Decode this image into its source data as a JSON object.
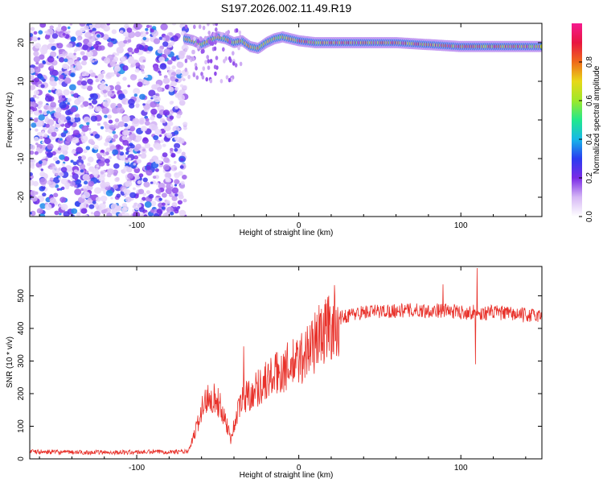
{
  "chart_data": [
    {
      "type": "heatmap",
      "title": "S197.2026.002.11.49.R19",
      "xlabel": "Height of straight line (km)",
      "ylabel": "Frequency (Hz)",
      "xlim": [
        -166,
        150
      ],
      "ylim": [
        -25,
        25
      ],
      "xticks": [
        -100,
        0,
        100
      ],
      "yticks": [
        -20,
        -10,
        0,
        10,
        20
      ],
      "noise_region_x": [
        -166,
        -70
      ],
      "signal_ridge": {
        "x": [
          -70,
          -65,
          -60,
          -55,
          -50,
          -45,
          -40,
          -35,
          -30,
          -25,
          -20,
          -15,
          -10,
          -5,
          0,
          10,
          20,
          40,
          60,
          80,
          100,
          120,
          150
        ],
        "freq": [
          21,
          20.5,
          19.5,
          20.5,
          21.5,
          21,
          20,
          20.5,
          19,
          18.5,
          20,
          21,
          21.5,
          21,
          20.5,
          20,
          20,
          20,
          20,
          19.5,
          19,
          19,
          19
        ]
      },
      "colorbar": {
        "label": "Normalized spectral amplitude",
        "range": [
          0,
          1
        ],
        "ticks": [
          0,
          0.2,
          0.4,
          0.6,
          0.8
        ],
        "colormap": [
          "#ffffff",
          "#d6b8f5",
          "#7a2ae6",
          "#2a3cf0",
          "#17b8e8",
          "#22e88c",
          "#9ee82a",
          "#e8d818",
          "#ef6a1a",
          "#e81540",
          "#f51a8f"
        ]
      }
    },
    {
      "type": "line",
      "xlabel": "Height of straight line (km)",
      "ylabel": "SNR (10 * v/v)",
      "xlim": [
        -166,
        150
      ],
      "ylim": [
        0,
        590
      ],
      "xticks": [
        -100,
        0,
        100
      ],
      "yticks": [
        0,
        100,
        200,
        300,
        400,
        500
      ],
      "series": [
        {
          "name": "SNR",
          "color": "#e8312a",
          "x": [
            -166,
            -140,
            -110,
            -80,
            -68,
            -64,
            -60,
            -55,
            -50,
            -45,
            -42,
            -38,
            -34,
            -30,
            -25,
            -20,
            -15,
            -10,
            -5,
            0,
            5,
            10,
            15,
            20,
            25,
            30,
            40,
            60,
            80,
            90,
            100,
            108,
            110,
            112,
            120,
            130,
            140,
            150
          ],
          "values": [
            22,
            20,
            20,
            22,
            22,
            80,
            150,
            200,
            175,
            120,
            60,
            140,
            190,
            200,
            220,
            240,
            255,
            275,
            285,
            300,
            330,
            360,
            390,
            410,
            430,
            440,
            450,
            455,
            455,
            455,
            450,
            450,
            440,
            445,
            450,
            445,
            440,
            440
          ]
        }
      ],
      "annotations": [
        {
          "x": -34,
          "value": 345
        },
        {
          "x": 89,
          "value": 535
        },
        {
          "x": 110,
          "value": 585
        },
        {
          "x": 109,
          "value": 290
        }
      ]
    }
  ]
}
